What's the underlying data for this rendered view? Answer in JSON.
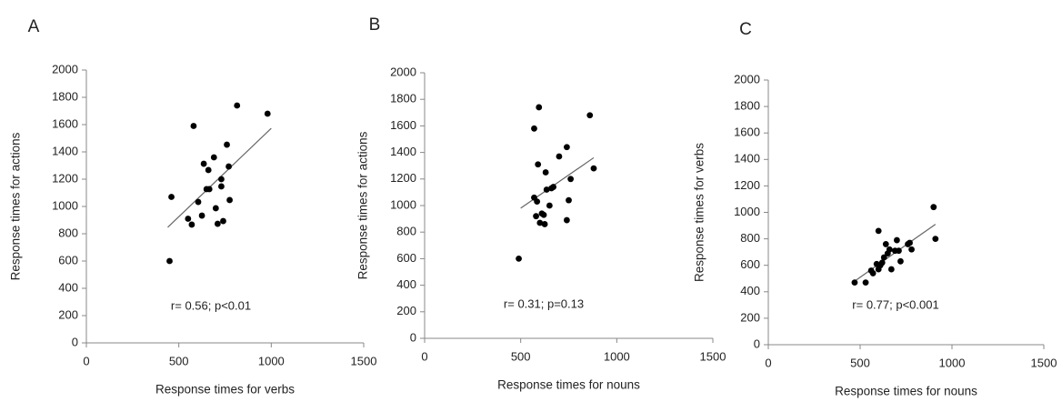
{
  "chart_data": [
    {
      "type": "scatter",
      "panel_label": "A",
      "x_label": "Response times for verbs",
      "y_label": "Response times for actions",
      "annotation": "r= 0.56; p<0.01",
      "x": [
        450,
        460,
        580,
        550,
        570,
        605,
        635,
        625,
        660,
        650,
        665,
        690,
        700,
        710,
        740,
        730,
        730,
        760,
        770,
        775,
        815,
        980
      ],
      "y": [
        600,
        1070,
        1590,
        910,
        867,
        1033,
        1313,
        933,
        1267,
        1127,
        1127,
        1360,
        987,
        873,
        893,
        1200,
        1147,
        1453,
        1293,
        1047,
        1740,
        1680
      ],
      "trend_line": {
        "x": [
          440,
          1000
        ],
        "y": [
          847,
          1573
        ]
      },
      "color": "#000000",
      "xlim": [
        0,
        1500
      ],
      "ylim": [
        0,
        2000
      ],
      "xticks": [
        0,
        500,
        1000,
        1500
      ],
      "yticks": [
        0,
        200,
        400,
        600,
        800,
        1000,
        1200,
        1400,
        1600,
        1800,
        2000
      ]
    },
    {
      "type": "scatter",
      "panel_label": "B",
      "x_label": "Response times for nouns",
      "y_label": "Response times for actions",
      "annotation": "r= 0.31; p=0.13",
      "x": [
        490,
        570,
        595,
        570,
        585,
        590,
        580,
        600,
        610,
        620,
        625,
        630,
        635,
        660,
        670,
        650,
        700,
        740,
        760,
        750,
        740,
        860,
        880
      ],
      "y": [
        600,
        1580,
        1740,
        1060,
        1030,
        1310,
        920,
        870,
        940,
        930,
        860,
        1250,
        1120,
        1130,
        1140,
        1000,
        1370,
        1440,
        1200,
        1040,
        890,
        1680,
        1280
      ],
      "trend_line": {
        "x": [
          500,
          880
        ],
        "y": [
          980,
          1360
        ]
      },
      "color": "#000000",
      "xlim": [
        0,
        1500
      ],
      "ylim": [
        0,
        2000
      ],
      "xticks": [
        0,
        500,
        1000,
        1500
      ],
      "yticks": [
        0,
        200,
        400,
        600,
        800,
        1000,
        1200,
        1400,
        1600,
        1800,
        2000
      ]
    },
    {
      "type": "scatter",
      "panel_label": "C",
      "x_label": "Response times for nouns",
      "y_label": "Response times for verbs",
      "annotation": "r= 0.77; p<0.001",
      "x": [
        470,
        530,
        560,
        570,
        590,
        600,
        600,
        610,
        620,
        630,
        640,
        650,
        660,
        670,
        690,
        700,
        710,
        720,
        760,
        770,
        780,
        900,
        910
      ],
      "y": [
        470,
        470,
        560,
        540,
        610,
        570,
        860,
        600,
        620,
        660,
        760,
        690,
        720,
        570,
        710,
        790,
        710,
        630,
        760,
        770,
        720,
        1040,
        800
      ],
      "trend_line": {
        "x": [
          470,
          910
        ],
        "y": [
          480,
          910
        ]
      },
      "color": "#000000",
      "xlim": [
        0,
        1500
      ],
      "ylim": [
        0,
        2000
      ],
      "xticks": [
        0,
        500,
        1000,
        1500
      ],
      "yticks": [
        0,
        200,
        400,
        600,
        800,
        1000,
        1200,
        1400,
        1600,
        1800,
        2000
      ]
    }
  ]
}
